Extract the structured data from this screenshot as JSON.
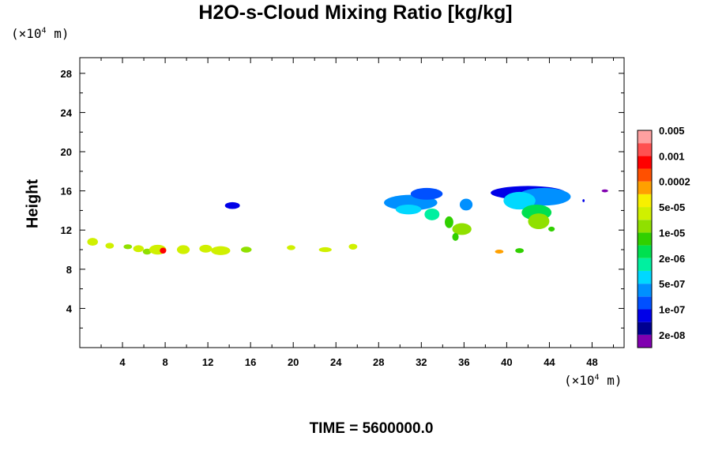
{
  "chart_data": {
    "type": "heatmap",
    "title": "H2O-s-Cloud Mixing Ratio [kg/kg]",
    "ylabel": "Height",
    "xlabel": "",
    "x_unit": "m",
    "y_unit": "m",
    "unit_prefix": "(×10",
    "unit_exponent": "4",
    "xlim": [
      0,
      51
    ],
    "ylim": [
      0,
      29.6
    ],
    "x_ticks": [
      4,
      8,
      12,
      16,
      20,
      24,
      28,
      32,
      36,
      40,
      44,
      48
    ],
    "y_ticks": [
      4,
      8,
      12,
      16,
      20,
      24,
      28
    ],
    "colorbar": {
      "colors": [
        "#8000b0",
        "#000090",
        "#0000e8",
        "#0050ff",
        "#0090ff",
        "#00d8ff",
        "#00f0a0",
        "#00e050",
        "#30d000",
        "#90e000",
        "#d0f000",
        "#f8f000",
        "#ffa000",
        "#ff5000",
        "#ff0000",
        "#ff5050",
        "#ffa0a0"
      ],
      "labels": [
        {
          "text": "2e-08",
          "boundary": 1
        },
        {
          "text": "1e-07",
          "boundary": 3
        },
        {
          "text": "5e-07",
          "boundary": 5
        },
        {
          "text": "2e-06",
          "boundary": 7
        },
        {
          "text": "1e-05",
          "boundary": 9
        },
        {
          "text": "5e-05",
          "boundary": 11
        },
        {
          "text": "0.0002",
          "boundary": 13
        },
        {
          "text": "0.001",
          "boundary": 15
        },
        {
          "text": "0.005",
          "boundary": 17
        }
      ]
    },
    "cloud_regions": [
      {
        "x": 1.2,
        "y": 10.8,
        "rx": 0.5,
        "ry": 0.4,
        "level": 10
      },
      {
        "x": 2.8,
        "y": 10.4,
        "rx": 0.4,
        "ry": 0.3,
        "level": 10
      },
      {
        "x": 4.5,
        "y": 10.3,
        "rx": 0.4,
        "ry": 0.25,
        "level": 9
      },
      {
        "x": 5.5,
        "y": 10.1,
        "rx": 0.5,
        "ry": 0.35,
        "level": 10
      },
      {
        "x": 6.3,
        "y": 9.8,
        "rx": 0.4,
        "ry": 0.3,
        "level": 9
      },
      {
        "x": 7.3,
        "y": 10.0,
        "rx": 0.8,
        "ry": 0.5,
        "level": 10
      },
      {
        "x": 7.8,
        "y": 9.9,
        "rx": 0.3,
        "ry": 0.3,
        "level": 14
      },
      {
        "x": 9.7,
        "y": 10.0,
        "rx": 0.6,
        "ry": 0.45,
        "level": 10
      },
      {
        "x": 11.8,
        "y": 10.1,
        "rx": 0.6,
        "ry": 0.4,
        "level": 10
      },
      {
        "x": 13.2,
        "y": 9.9,
        "rx": 0.9,
        "ry": 0.45,
        "level": 10
      },
      {
        "x": 15.6,
        "y": 10.0,
        "rx": 0.5,
        "ry": 0.3,
        "level": 9
      },
      {
        "x": 19.8,
        "y": 10.2,
        "rx": 0.4,
        "ry": 0.25,
        "level": 10
      },
      {
        "x": 23.0,
        "y": 10.0,
        "rx": 0.6,
        "ry": 0.25,
        "level": 10
      },
      {
        "x": 25.6,
        "y": 10.3,
        "rx": 0.4,
        "ry": 0.3,
        "level": 10
      },
      {
        "x": 14.3,
        "y": 14.5,
        "rx": 0.7,
        "ry": 0.35,
        "level": 2
      },
      {
        "x": 31.0,
        "y": 14.8,
        "rx": 2.5,
        "ry": 0.8,
        "level": 4
      },
      {
        "x": 32.5,
        "y": 15.7,
        "rx": 1.5,
        "ry": 0.6,
        "level": 3
      },
      {
        "x": 30.8,
        "y": 14.1,
        "rx": 1.2,
        "ry": 0.5,
        "level": 5
      },
      {
        "x": 33.0,
        "y": 13.6,
        "rx": 0.7,
        "ry": 0.6,
        "level": 6
      },
      {
        "x": 34.6,
        "y": 12.8,
        "rx": 0.4,
        "ry": 0.6,
        "level": 8
      },
      {
        "x": 36.2,
        "y": 14.6,
        "rx": 0.6,
        "ry": 0.6,
        "level": 4
      },
      {
        "x": 35.8,
        "y": 12.1,
        "rx": 0.9,
        "ry": 0.6,
        "level": 9
      },
      {
        "x": 35.2,
        "y": 11.3,
        "rx": 0.3,
        "ry": 0.4,
        "level": 8
      },
      {
        "x": 42.0,
        "y": 15.8,
        "rx": 3.5,
        "ry": 0.7,
        "level": 2
      },
      {
        "x": 43.5,
        "y": 15.4,
        "rx": 2.5,
        "ry": 0.9,
        "level": 4
      },
      {
        "x": 41.2,
        "y": 15.0,
        "rx": 1.5,
        "ry": 0.9,
        "level": 5
      },
      {
        "x": 42.8,
        "y": 13.8,
        "rx": 1.4,
        "ry": 0.8,
        "level": 7
      },
      {
        "x": 43.0,
        "y": 12.9,
        "rx": 1.0,
        "ry": 0.8,
        "level": 9
      },
      {
        "x": 44.2,
        "y": 12.1,
        "rx": 0.3,
        "ry": 0.25,
        "level": 8
      },
      {
        "x": 39.3,
        "y": 9.8,
        "rx": 0.4,
        "ry": 0.2,
        "level": 12
      },
      {
        "x": 41.2,
        "y": 9.9,
        "rx": 0.4,
        "ry": 0.25,
        "level": 8
      },
      {
        "x": 49.2,
        "y": 16.0,
        "rx": 0.3,
        "ry": 0.15,
        "level": 0
      },
      {
        "x": 47.2,
        "y": 15.0,
        "rx": 0.1,
        "ry": 0.15,
        "level": 2
      }
    ]
  },
  "footer": {
    "time_label": "TIME = 5600000.0"
  }
}
